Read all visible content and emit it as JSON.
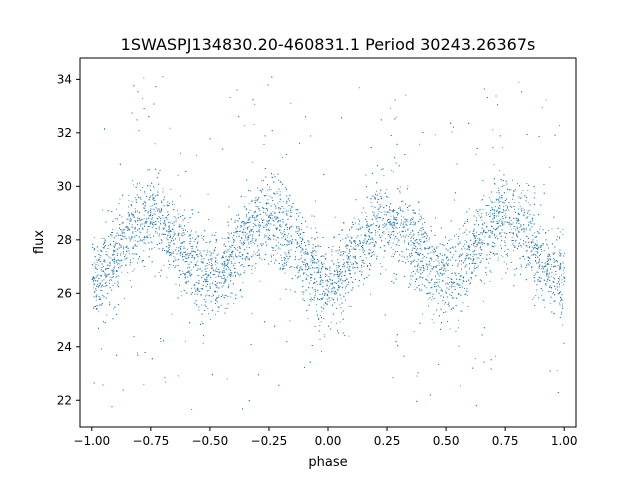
{
  "chart_data": {
    "type": "scatter",
    "title": "1SWASPJ134830.20-460831.1 Period 30243.26367s",
    "xlabel": "phase",
    "ylabel": "flux",
    "xlim": [
      -1.05,
      1.05
    ],
    "ylim": [
      21.0,
      34.8
    ],
    "xticks": [
      -1.0,
      -0.75,
      -0.5,
      -0.25,
      0.0,
      0.25,
      0.5,
      0.75,
      1.0
    ],
    "xtick_labels": [
      "−1.00",
      "−0.75",
      "−0.50",
      "−0.25",
      "0.00",
      "0.25",
      "0.50",
      "0.75",
      "1.00"
    ],
    "yticks": [
      22,
      24,
      26,
      28,
      30,
      32,
      34
    ],
    "ytick_labels": [
      "22",
      "24",
      "26",
      "28",
      "30",
      "32",
      "34"
    ],
    "grid": false,
    "legend": "none",
    "marker_color": "#1f77b4",
    "series": [
      {
        "description_free": true,
        "x_range": [
          -1.0,
          1.0
        ],
        "trend_x": [
          -1.0,
          -0.75,
          -0.5,
          -0.25,
          0.0,
          0.25,
          0.5,
          0.75,
          1.0
        ],
        "trend_y": [
          26.5,
          28.8,
          26.6,
          28.7,
          26.4,
          28.7,
          26.6,
          28.8,
          26.5
        ],
        "scatter_sd": 1.0,
        "y_extent": [
          21.6,
          34.2
        ]
      }
    ]
  }
}
